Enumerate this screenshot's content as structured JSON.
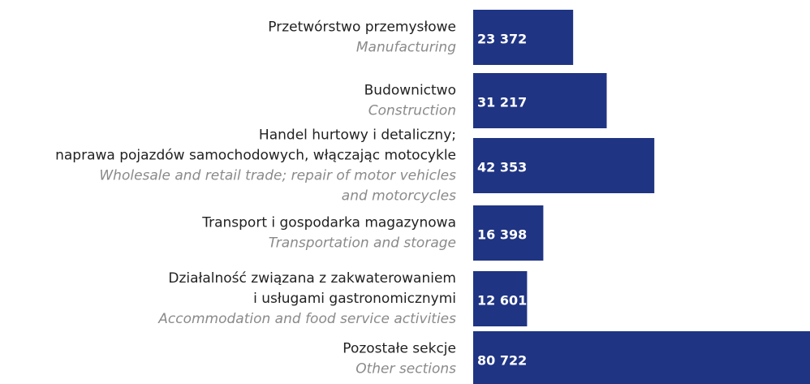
{
  "chart_data": {
    "type": "barh",
    "categories": [
      {
        "pl": [
          "Przetwórstwo przemysłowe"
        ],
        "en": [
          "Manufacturing"
        ]
      },
      {
        "pl": [
          "Budownictwo"
        ],
        "en": [
          "Construction"
        ]
      },
      {
        "pl": [
          "Handel hurtowy i detaliczny;",
          "naprawa pojazdów samochodowych, włączając motocykle"
        ],
        "en": [
          "Wholesale and retail trade; repair of motor vehicles",
          "and motorcycles"
        ]
      },
      {
        "pl": [
          "Transport i gospodarka magazynowa"
        ],
        "en": [
          "Transportation and storage"
        ]
      },
      {
        "pl": [
          "Działalność związana z zakwaterowaniem",
          "i usługami gastronomicznymi"
        ],
        "en": [
          "Accommodation and food service activities"
        ]
      },
      {
        "pl": [
          "Pozostałe sekcje"
        ],
        "en": [
          "Other sections"
        ]
      }
    ],
    "values": [
      23372,
      31217,
      42353,
      16398,
      12601,
      80722
    ],
    "value_labels": [
      "23 372",
      "31 217",
      "42 353",
      "16 398",
      "12 601",
      "80 722"
    ],
    "color": "#1f3483"
  }
}
